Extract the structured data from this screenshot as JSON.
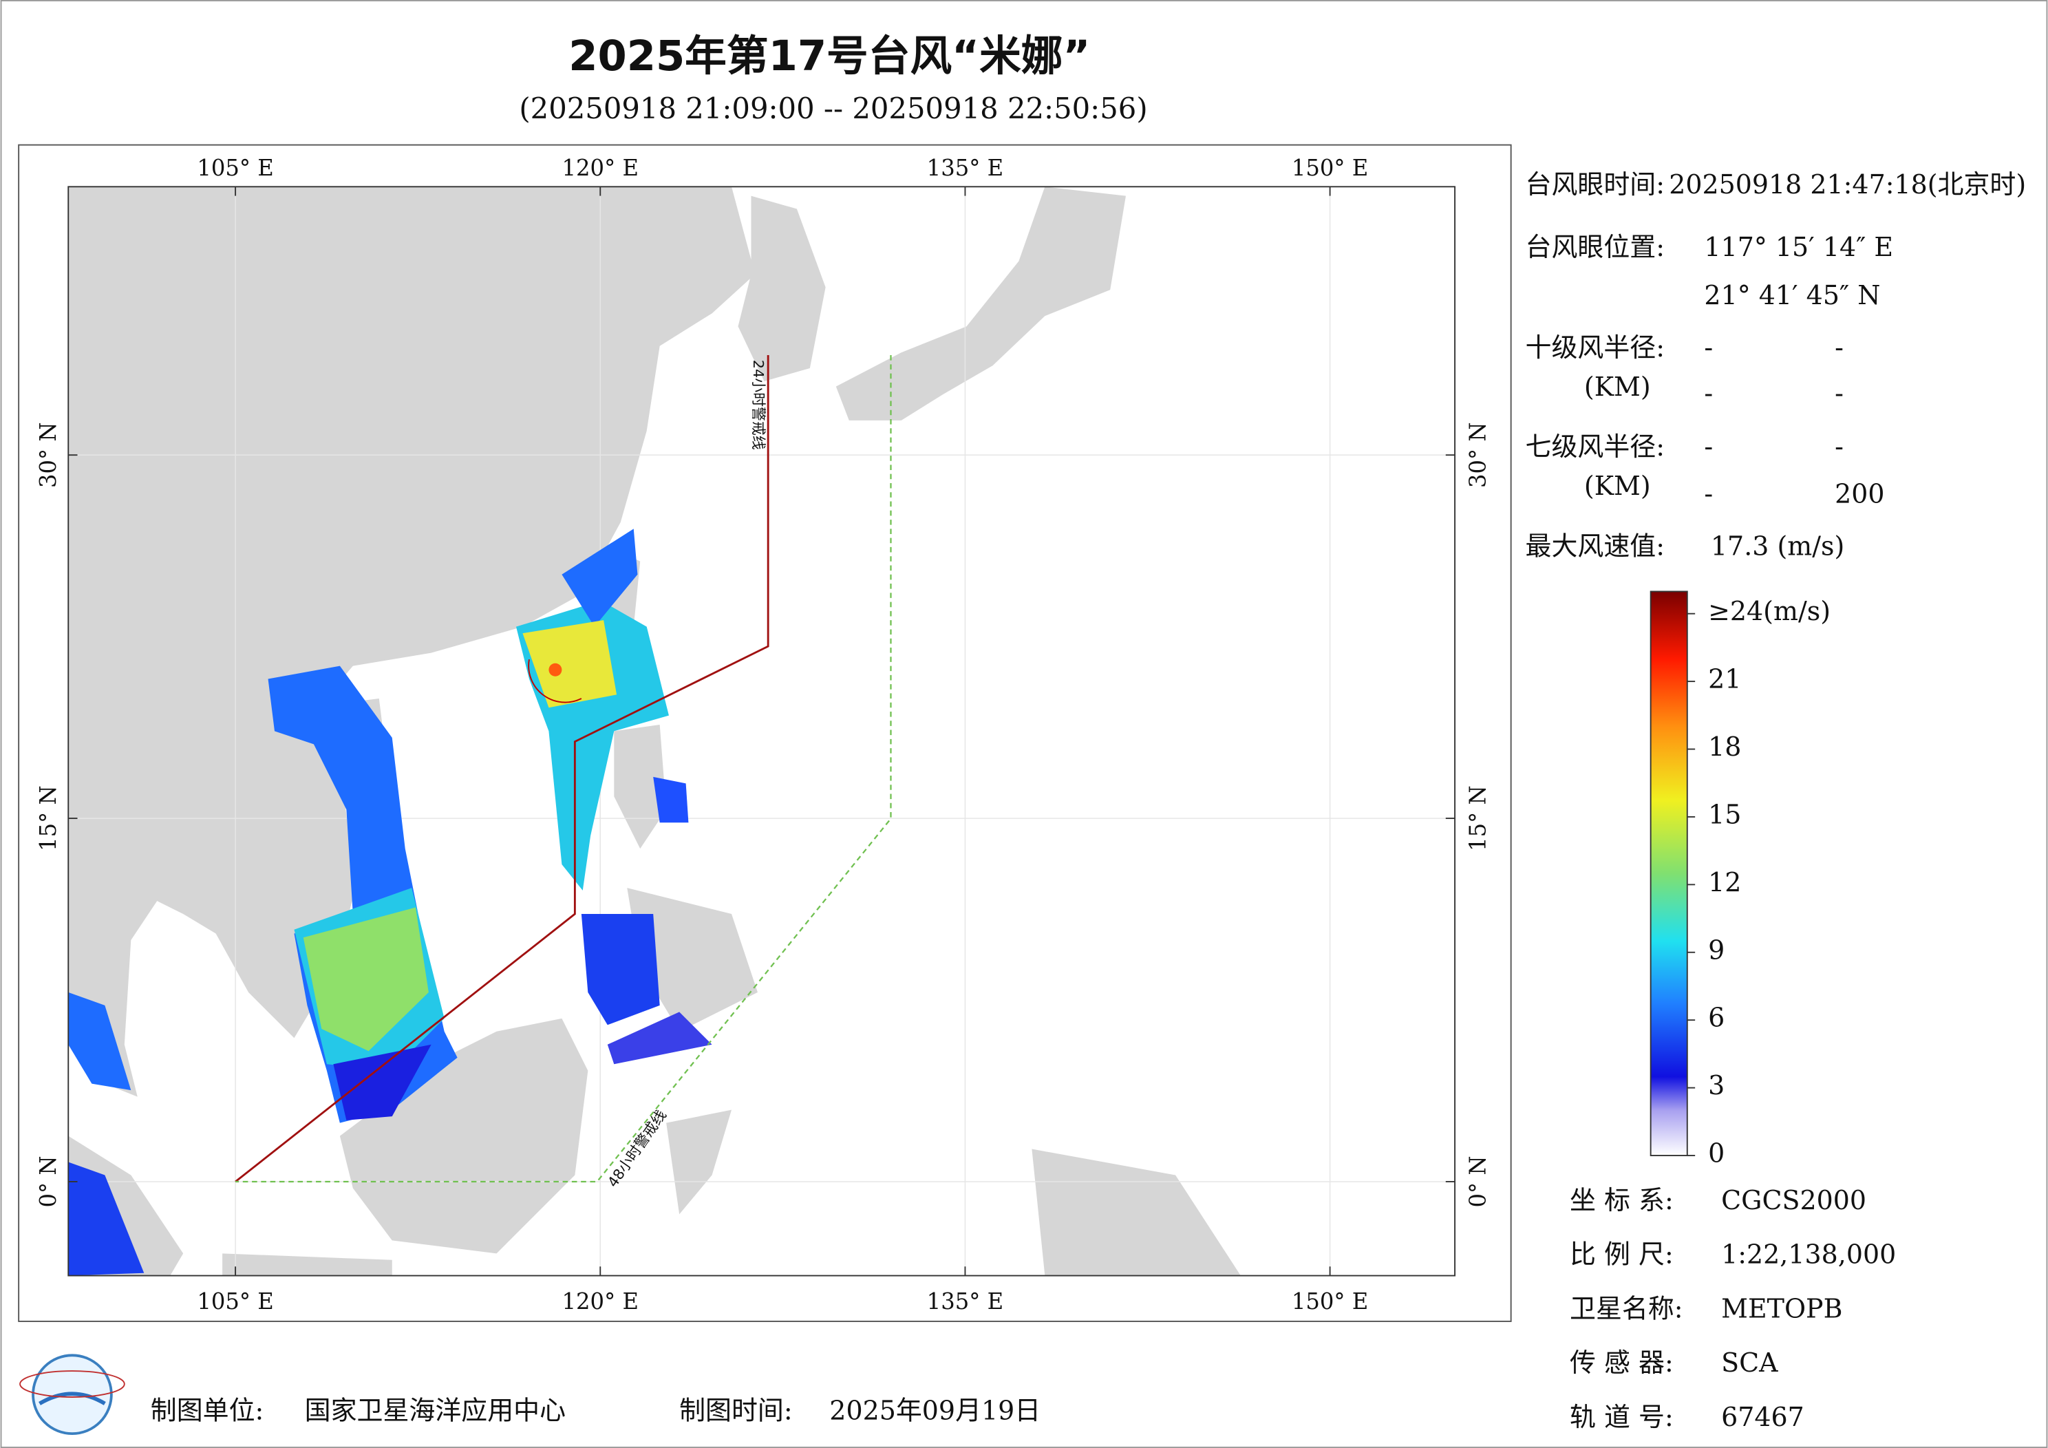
{
  "title": "2025年第17号台风“米娜”",
  "subtitle": "(20250918 21:09:00 -- 20250918 22:50:56)",
  "map": {
    "lon_ticks": [
      {
        "value": 105,
        "label": "105° E"
      },
      {
        "value": 120,
        "label": "120° E"
      },
      {
        "value": 135,
        "label": "135° E"
      },
      {
        "value": 150,
        "label": "150° E"
      }
    ],
    "lat_ticks": [
      {
        "value": 0,
        "label": "0° N"
      },
      {
        "value": 15,
        "label": "15° N"
      },
      {
        "value": 30,
        "label": "30° N"
      }
    ],
    "warning_24h": "24小时警戒线",
    "warning_48h": "48小时警戒线"
  },
  "info": {
    "eye_time_label": "台风眼时间:",
    "eye_time": "20250918 21:47:18(北京时)",
    "eye_pos_label": "台风眼位置:",
    "eye_lon": "117° 15′ 14″ E",
    "eye_lat": "21° 41′ 45″ N",
    "r10_label": "十级风半径:",
    "r10": [
      "-",
      "-"
    ],
    "r10_unit": "(KM)",
    "r10b": [
      "-",
      "-"
    ],
    "r7_label": "七级风半径:",
    "r7": [
      "-",
      "-"
    ],
    "r7_unit": "(KM)",
    "r7b": [
      "-",
      "200"
    ],
    "vmax_label": "最大风速值:",
    "vmax": "17.3 (m/s)"
  },
  "colorbar": {
    "lim": [
      0,
      24
    ],
    "ticks": [
      0,
      3,
      6,
      9,
      12,
      15,
      18,
      21,
      {
        "value": 24,
        "label": "≥24(m/s)"
      }
    ]
  },
  "meta": [
    {
      "label": "坐 标 系:",
      "value": "CGCS2000"
    },
    {
      "label": "比 例 尺:",
      "value": "1:22,138,000"
    },
    {
      "label": "卫星名称:",
      "value": "METOPB"
    },
    {
      "label": "传 感 器:",
      "value": "SCA"
    },
    {
      "label": "轨 道 号:",
      "value": "67467"
    }
  ],
  "footer": {
    "unit_label": "制图单位:",
    "unit": "国家卫星海洋应用中心",
    "time_label": "制图时间:",
    "time": "2025年09月19日"
  }
}
